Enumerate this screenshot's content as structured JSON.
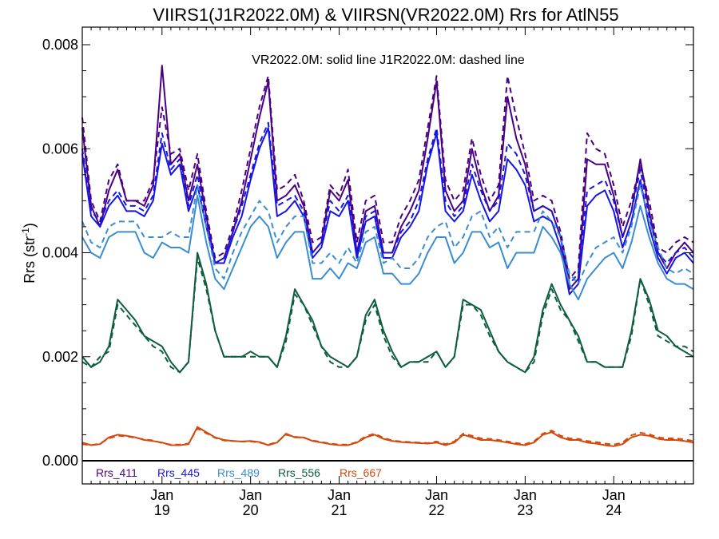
{
  "chart_data": {
    "type": "line",
    "title": "VIIRS1(J1R2022.0M) & VIIRSN(VR2022.0M)  Rrs for AtlN55",
    "annotation": "VR2022.0M: solid line   J1R2022.0M: dashed line",
    "ylabel_main": "Rrs (str",
    "ylabel_sup": "-1",
    "ylabel_close": ")",
    "ylim": [
      0,
      0.0084
    ],
    "xlim": [
      1,
      70
    ],
    "yticks": [
      "0.000",
      "0.002",
      "0.004",
      "0.006",
      "0.008"
    ],
    "ytick_values": [
      0,
      0.002,
      0.004,
      0.006,
      0.008
    ],
    "xticks": [
      {
        "month": "Jan",
        "year": "19",
        "x": 10
      },
      {
        "month": "Jan",
        "year": "20",
        "x": 20
      },
      {
        "month": "Jan",
        "year": "21",
        "x": 30
      },
      {
        "month": "Jan",
        "year": "22",
        "x": 41
      },
      {
        "month": "Jan",
        "year": "23",
        "x": 51
      },
      {
        "month": "Jan",
        "year": "24",
        "x": 61
      }
    ],
    "x": [
      1,
      2,
      3,
      4,
      5,
      6,
      7,
      8,
      9,
      10,
      11,
      12,
      13,
      14,
      15,
      16,
      17,
      18,
      19,
      20,
      21,
      22,
      23,
      24,
      25,
      26,
      27,
      28,
      29,
      30,
      31,
      32,
      33,
      34,
      35,
      36,
      37,
      38,
      39,
      40,
      41,
      42,
      43,
      44,
      45,
      46,
      47,
      48,
      49,
      50,
      51,
      52,
      53,
      54,
      55,
      56,
      57,
      58,
      59,
      60,
      61,
      62,
      63,
      64,
      65,
      66,
      67,
      68,
      69,
      70
    ],
    "series": [
      {
        "name": "Rrs_411",
        "color": "#4B0082",
        "solid": [
          0.0064,
          0.0049,
          0.0045,
          0.0052,
          0.0056,
          0.005,
          0.005,
          0.0049,
          0.0053,
          0.0076,
          0.0057,
          0.0059,
          0.005,
          0.0057,
          0.0047,
          0.0038,
          0.0039,
          0.0044,
          0.005,
          0.0058,
          0.0066,
          0.0073,
          0.005,
          0.0051,
          0.0053,
          0.0049,
          0.004,
          0.0042,
          0.0052,
          0.005,
          0.0054,
          0.004,
          0.0048,
          0.0049,
          0.004,
          0.004,
          0.0045,
          0.0048,
          0.0052,
          0.0062,
          0.0073,
          0.0052,
          0.0048,
          0.005,
          0.006,
          0.0053,
          0.0048,
          0.0051,
          0.007,
          0.0062,
          0.0057,
          0.0048,
          0.0049,
          0.0048,
          0.0043,
          0.0033,
          0.0035,
          0.0058,
          0.0057,
          0.0057,
          0.0051,
          0.0043,
          0.0048,
          0.0058,
          0.0048,
          0.004,
          0.0037,
          0.004,
          0.0042,
          0.004
        ],
        "dashed": [
          0.0066,
          0.005,
          0.0046,
          0.0054,
          0.0057,
          0.005,
          0.005,
          0.005,
          0.0054,
          0.0068,
          0.0059,
          0.006,
          0.0052,
          0.0059,
          0.0048,
          0.0039,
          0.004,
          0.0045,
          0.0052,
          0.006,
          0.0068,
          0.0074,
          0.0052,
          0.0053,
          0.0055,
          0.005,
          0.0042,
          0.0043,
          0.0053,
          0.0051,
          0.0056,
          0.0042,
          0.005,
          0.0051,
          0.0042,
          0.0042,
          0.0047,
          0.005,
          0.0054,
          0.0064,
          0.0074,
          0.0054,
          0.005,
          0.0052,
          0.0062,
          0.0055,
          0.005,
          0.0053,
          0.0074,
          0.0066,
          0.0059,
          0.005,
          0.0051,
          0.005,
          0.0044,
          0.0035,
          0.0037,
          0.0063,
          0.006,
          0.0059,
          0.0053,
          0.0045,
          0.005,
          0.0057,
          0.005,
          0.0041,
          0.004,
          0.0042,
          0.0043,
          0.0042
        ]
      },
      {
        "name": "Rrs_445",
        "color": "#1515E6",
        "solid": [
          0.0059,
          0.0047,
          0.0045,
          0.0049,
          0.0051,
          0.0048,
          0.0048,
          0.0047,
          0.005,
          0.0061,
          0.0055,
          0.0057,
          0.0048,
          0.0053,
          0.0045,
          0.0038,
          0.0038,
          0.0043,
          0.0047,
          0.0054,
          0.006,
          0.0064,
          0.0047,
          0.0048,
          0.005,
          0.0047,
          0.0039,
          0.0041,
          0.0048,
          0.0047,
          0.005,
          0.0039,
          0.0046,
          0.0047,
          0.0039,
          0.0039,
          0.0043,
          0.0045,
          0.0048,
          0.0057,
          0.0063,
          0.0048,
          0.0046,
          0.0048,
          0.0055,
          0.005,
          0.0046,
          0.0048,
          0.0058,
          0.0056,
          0.0053,
          0.0046,
          0.0047,
          0.0046,
          0.0041,
          0.0032,
          0.0034,
          0.0049,
          0.0051,
          0.0052,
          0.0048,
          0.0041,
          0.0046,
          0.0054,
          0.0045,
          0.0039,
          0.0036,
          0.0039,
          0.004,
          0.0038
        ],
        "dashed": [
          0.006,
          0.0048,
          0.0046,
          0.005,
          0.0052,
          0.0049,
          0.0049,
          0.0048,
          0.0051,
          0.0063,
          0.0056,
          0.0058,
          0.0049,
          0.0055,
          0.0046,
          0.0038,
          0.0039,
          0.0044,
          0.0049,
          0.0055,
          0.0061,
          0.0065,
          0.0049,
          0.005,
          0.0051,
          0.0048,
          0.004,
          0.0042,
          0.005,
          0.0048,
          0.0051,
          0.004,
          0.0047,
          0.0048,
          0.004,
          0.004,
          0.0044,
          0.0046,
          0.005,
          0.0058,
          0.0064,
          0.005,
          0.0047,
          0.0049,
          0.0057,
          0.0052,
          0.0048,
          0.005,
          0.0061,
          0.0059,
          0.0055,
          0.0048,
          0.0049,
          0.0048,
          0.0043,
          0.0034,
          0.0036,
          0.0052,
          0.0053,
          0.0054,
          0.005,
          0.0043,
          0.0048,
          0.0056,
          0.0047,
          0.004,
          0.0038,
          0.004,
          0.0041,
          0.0039
        ]
      },
      {
        "name": "Rrs_489",
        "color": "#3A8DD1",
        "solid": [
          0.0043,
          0.004,
          0.0039,
          0.0043,
          0.0044,
          0.0044,
          0.0044,
          0.004,
          0.0039,
          0.0042,
          0.0041,
          0.0041,
          0.004,
          0.0051,
          0.0042,
          0.0035,
          0.0033,
          0.0037,
          0.0041,
          0.0045,
          0.0047,
          0.0045,
          0.0039,
          0.0042,
          0.0044,
          0.0044,
          0.0035,
          0.0035,
          0.0037,
          0.0035,
          0.0038,
          0.0037,
          0.0042,
          0.0043,
          0.0036,
          0.0036,
          0.0034,
          0.0034,
          0.0036,
          0.004,
          0.0043,
          0.0043,
          0.0038,
          0.004,
          0.0044,
          0.0044,
          0.0041,
          0.0042,
          0.0037,
          0.004,
          0.004,
          0.004,
          0.0045,
          0.0043,
          0.004,
          0.0034,
          0.0031,
          0.0035,
          0.0037,
          0.0039,
          0.004,
          0.0037,
          0.0042,
          0.0049,
          0.0043,
          0.0038,
          0.0035,
          0.0034,
          0.0034,
          0.0033
        ],
        "dashed": [
          0.0046,
          0.0042,
          0.0041,
          0.0045,
          0.0046,
          0.0046,
          0.0046,
          0.0043,
          0.0043,
          0.0043,
          0.0044,
          0.0043,
          0.0043,
          0.0053,
          0.0045,
          0.0037,
          0.0035,
          0.004,
          0.0044,
          0.0047,
          0.005,
          0.0048,
          0.0042,
          0.0045,
          0.0047,
          0.0047,
          0.0038,
          0.0038,
          0.004,
          0.0038,
          0.0041,
          0.0038,
          0.0044,
          0.0045,
          0.0038,
          0.0039,
          0.0037,
          0.0037,
          0.0039,
          0.0043,
          0.0045,
          0.0046,
          0.0041,
          0.0043,
          0.0047,
          0.0048,
          0.0043,
          0.0045,
          0.0041,
          0.0044,
          0.0044,
          0.0044,
          0.0048,
          0.0046,
          0.0043,
          0.0036,
          0.0034,
          0.0038,
          0.0041,
          0.0042,
          0.0043,
          0.004,
          0.0045,
          0.0053,
          0.0046,
          0.0041,
          0.0037,
          0.0036,
          0.0037,
          0.0036
        ]
      },
      {
        "name": "Rrs_556",
        "color": "#0E5E3E",
        "solid": [
          0.002,
          0.0018,
          0.0019,
          0.0022,
          0.0031,
          0.0029,
          0.0027,
          0.0024,
          0.0023,
          0.0022,
          0.0019,
          0.0017,
          0.0019,
          0.004,
          0.0034,
          0.0025,
          0.002,
          0.002,
          0.002,
          0.0021,
          0.002,
          0.002,
          0.0018,
          0.0024,
          0.0033,
          0.003,
          0.0027,
          0.0022,
          0.002,
          0.0019,
          0.0018,
          0.002,
          0.0028,
          0.0031,
          0.0025,
          0.0021,
          0.0018,
          0.0019,
          0.0019,
          0.002,
          0.0021,
          0.0018,
          0.002,
          0.0031,
          0.003,
          0.0029,
          0.0025,
          0.0021,
          0.0019,
          0.0018,
          0.0017,
          0.002,
          0.0029,
          0.0034,
          0.003,
          0.0027,
          0.0024,
          0.0019,
          0.0019,
          0.0018,
          0.0018,
          0.0018,
          0.0025,
          0.0035,
          0.0031,
          0.0025,
          0.0024,
          0.0022,
          0.0021,
          0.002
        ],
        "dashed": [
          0.0019,
          0.0018,
          0.002,
          0.0021,
          0.003,
          0.0028,
          0.0026,
          0.0024,
          0.0022,
          0.0021,
          0.0018,
          0.0017,
          0.0019,
          0.0039,
          0.0033,
          0.0025,
          0.002,
          0.002,
          0.002,
          0.002,
          0.002,
          0.002,
          0.0018,
          0.0023,
          0.0032,
          0.003,
          0.0026,
          0.0022,
          0.0019,
          0.0018,
          0.0018,
          0.002,
          0.0027,
          0.003,
          0.0024,
          0.002,
          0.0018,
          0.0019,
          0.0019,
          0.0019,
          0.0021,
          0.0018,
          0.002,
          0.003,
          0.003,
          0.0028,
          0.0024,
          0.0021,
          0.0019,
          0.0018,
          0.0017,
          0.0019,
          0.0028,
          0.0033,
          0.0029,
          0.0027,
          0.0023,
          0.0019,
          0.0019,
          0.0018,
          0.0018,
          0.0018,
          0.0024,
          0.0035,
          0.003,
          0.0024,
          0.0023,
          0.0022,
          0.0022,
          0.0021
        ]
      },
      {
        "name": "Rrs_667",
        "color": "#D4480C",
        "solid": [
          0.00035,
          0.0003,
          0.00032,
          0.00045,
          0.0005,
          0.00048,
          0.00045,
          0.0004,
          0.00038,
          0.00035,
          0.0003,
          0.0003,
          0.00032,
          0.00065,
          0.00055,
          0.00045,
          0.0004,
          0.00038,
          0.00037,
          0.00038,
          0.00036,
          0.0003,
          0.00035,
          0.00052,
          0.00045,
          0.00045,
          0.00038,
          0.00035,
          0.00032,
          0.0003,
          0.0003,
          0.00035,
          0.00045,
          0.0005,
          0.00042,
          0.00038,
          0.00036,
          0.00035,
          0.00034,
          0.00033,
          0.00035,
          0.0003,
          0.00035,
          0.0005,
          0.00045,
          0.0004,
          0.0004,
          0.00038,
          0.00035,
          0.00032,
          0.0003,
          0.00035,
          0.0005,
          0.00055,
          0.00045,
          0.0004,
          0.0004,
          0.00035,
          0.00033,
          0.0003,
          0.00028,
          0.00032,
          0.00045,
          0.0005,
          0.00048,
          0.00042,
          0.0004,
          0.0004,
          0.00038,
          0.00035
        ],
        "dashed": [
          0.00032,
          0.0003,
          0.00033,
          0.00043,
          0.00048,
          0.00047,
          0.00044,
          0.00041,
          0.00039,
          0.00034,
          0.00031,
          0.00031,
          0.00033,
          0.00062,
          0.00053,
          0.00044,
          0.00039,
          0.00038,
          0.00037,
          0.00037,
          0.00035,
          0.00031,
          0.00036,
          0.0005,
          0.00046,
          0.00044,
          0.00039,
          0.00036,
          0.00033,
          0.00031,
          0.00031,
          0.00036,
          0.00047,
          0.00052,
          0.00044,
          0.00039,
          0.00037,
          0.00036,
          0.00035,
          0.00034,
          0.00037,
          0.00032,
          0.00037,
          0.00052,
          0.00048,
          0.00043,
          0.00042,
          0.0004,
          0.00037,
          0.00034,
          0.00032,
          0.00037,
          0.00052,
          0.00058,
          0.00048,
          0.00043,
          0.00042,
          0.00038,
          0.00036,
          0.00033,
          0.00031,
          0.00035,
          0.00049,
          0.00054,
          0.00051,
          0.00045,
          0.00043,
          0.00043,
          0.00041,
          0.00038
        ]
      }
    ]
  }
}
